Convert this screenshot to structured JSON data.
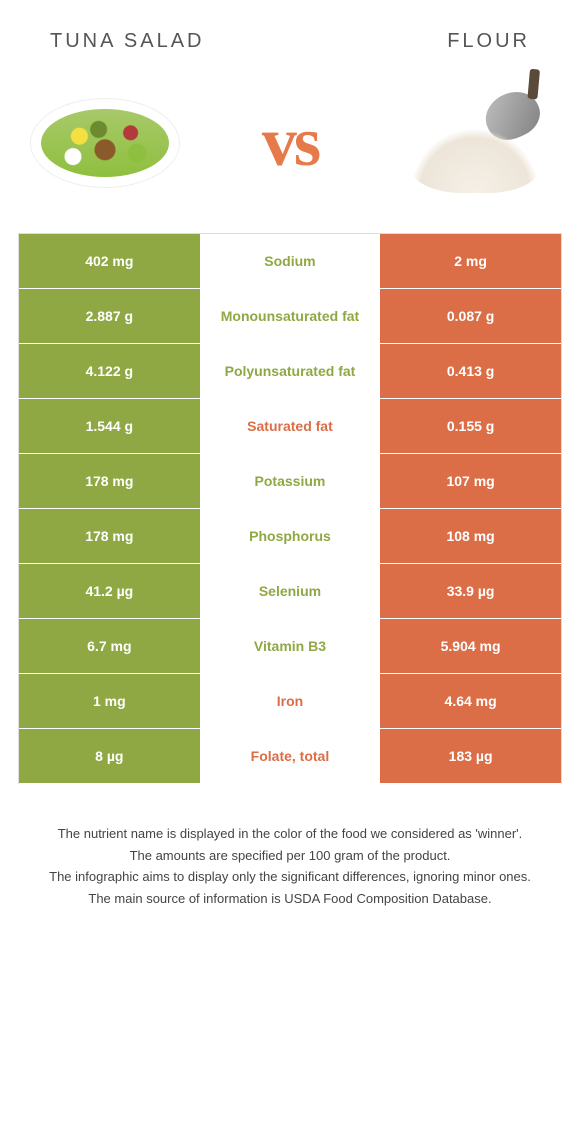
{
  "header": {
    "left_title": "Tuna Salad",
    "right_title": "Flour",
    "vs_label": "vs"
  },
  "colors": {
    "left": "#8fa843",
    "right": "#db6e47",
    "border": "#dddddd",
    "background": "#ffffff"
  },
  "rows": [
    {
      "label": "Sodium",
      "left": "402 mg",
      "right": "2 mg",
      "winner": "left"
    },
    {
      "label": "Monounsaturated fat",
      "left": "2.887 g",
      "right": "0.087 g",
      "winner": "left"
    },
    {
      "label": "Polyunsaturated fat",
      "left": "4.122 g",
      "right": "0.413 g",
      "winner": "left"
    },
    {
      "label": "Saturated fat",
      "left": "1.544 g",
      "right": "0.155 g",
      "winner": "right"
    },
    {
      "label": "Potassium",
      "left": "178 mg",
      "right": "107 mg",
      "winner": "left"
    },
    {
      "label": "Phosphorus",
      "left": "178 mg",
      "right": "108 mg",
      "winner": "left"
    },
    {
      "label": "Selenium",
      "left": "41.2 µg",
      "right": "33.9 µg",
      "winner": "left"
    },
    {
      "label": "Vitamin B3",
      "left": "6.7 mg",
      "right": "5.904 mg",
      "winner": "left"
    },
    {
      "label": "Iron",
      "left": "1 mg",
      "right": "4.64 mg",
      "winner": "right"
    },
    {
      "label": "Folate, total",
      "left": "8 µg",
      "right": "183 µg",
      "winner": "right"
    }
  ],
  "footer": {
    "line1": "The nutrient name is displayed in the color of the food we considered as 'winner'.",
    "line2": "The amounts are specified per 100 gram of the product.",
    "line3": "The infographic aims to display only the significant differences, ignoring minor ones.",
    "line4": "The main source of information is USDA Food Composition Database."
  }
}
